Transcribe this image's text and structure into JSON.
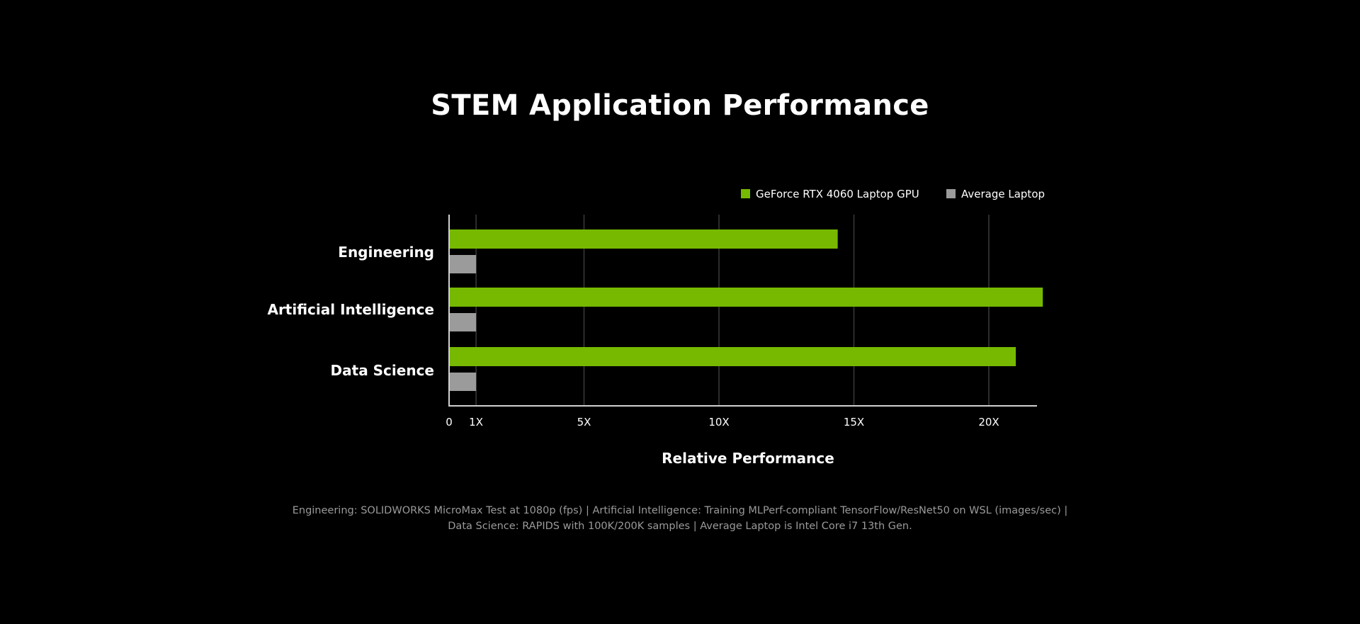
{
  "page": {
    "footnote_line1": "Engineering: SOLIDWORKS MicroMax Test at 1080p (fps) | Artificial Intelligence: Training MLPerf-compliant TensorFlow/ResNet50 on WSL (images/sec) |",
    "footnote_line2": "Data Science: RAPIDS with 100K/200K samples |  Average Laptop is Intel Core i7 13th Gen."
  },
  "colors": {
    "background": "#000000",
    "rtx": "#76b900",
    "average": "#9b9b9b",
    "grid": "#3a3a3a",
    "axis": "#d0d0d0"
  },
  "chart_data": {
    "type": "bar",
    "orientation": "horizontal",
    "title": "STEM Application Performance",
    "xlabel": "Relative Performance",
    "ylabel": "",
    "categories": [
      "Engineering",
      "Artificial Intelligence",
      "Data Science"
    ],
    "series": [
      {
        "name": "GeForce RTX 4060 Laptop GPU",
        "color": "#76b900",
        "values": [
          14.4,
          22.0,
          21.0
        ]
      },
      {
        "name": "Average Laptop",
        "color": "#9b9b9b",
        "values": [
          1,
          1,
          1
        ]
      }
    ],
    "xticks": [
      {
        "value": 0,
        "label": "0"
      },
      {
        "value": 1,
        "label": "1X"
      },
      {
        "value": 5,
        "label": "5X"
      },
      {
        "value": 10,
        "label": "10X"
      },
      {
        "value": 15,
        "label": "15X"
      },
      {
        "value": 20,
        "label": "20X"
      }
    ],
    "xlim": [
      0,
      21.7
    ],
    "grid": true,
    "legend_position": "top-right"
  }
}
